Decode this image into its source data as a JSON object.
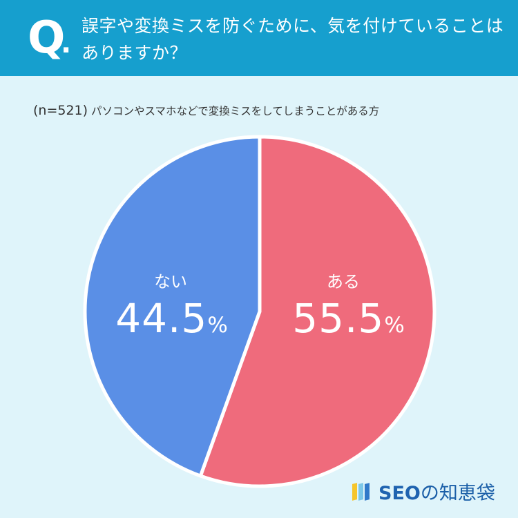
{
  "header": {
    "q_mark": "Q",
    "q_dot": ".",
    "question": "誤字や変換ミスを防ぐために、気を付けていることはありますか？"
  },
  "sample": {
    "n_label": "(n=521)",
    "description": "パソコンやスマホなどで変換ミスをしてしまうことがある方"
  },
  "colors": {
    "header_bg": "#169fce",
    "background": "#dff4fa",
    "yes": "#ef6b7c",
    "no": "#5a8fe6"
  },
  "chart_data": {
    "type": "pie",
    "title": "",
    "slices": [
      {
        "label": "ある",
        "value": 55.5,
        "display": "55.5",
        "unit": "%",
        "color": "#ef6b7c"
      },
      {
        "label": "ない",
        "value": 44.5,
        "display": "44.5",
        "unit": "%",
        "color": "#5a8fe6"
      }
    ],
    "start": "12 o'clock",
    "direction": "clockwise",
    "legend": "none"
  },
  "logo": {
    "seo": "SEO",
    "rest": "の知恵袋",
    "mark_colors": [
      "#f6c52b",
      "#7cc7e8",
      "#2f78c9"
    ]
  }
}
